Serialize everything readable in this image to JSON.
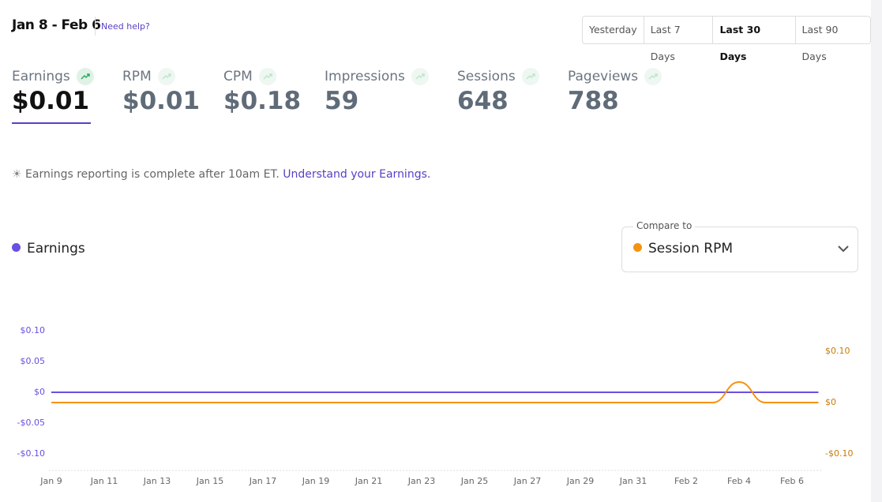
{
  "header": {
    "date_range": "Jan 8 - Feb 6",
    "help_link": "Need help?"
  },
  "range_buttons": [
    "Yesterday",
    "Last 7 Days",
    "Last 30 Days",
    "Last 90 Days"
  ],
  "active_range": 2,
  "metrics": [
    {
      "label": "Earnings",
      "value": "$0.01"
    },
    {
      "label": "RPM",
      "value": "$0.01"
    },
    {
      "label": "CPM",
      "value": "$0.18"
    },
    {
      "label": "Impressions",
      "value": "59"
    },
    {
      "label": "Sessions",
      "value": "648"
    },
    {
      "label": "Pageviews",
      "value": "788"
    }
  ],
  "notice": {
    "text": "Earnings reporting is complete after 10am ET.",
    "link": "Understand your Earnings."
  },
  "compare": {
    "label": "Compare to"
  },
  "chart_data": {
    "type": "line",
    "categories": [
      "Jan 9",
      null,
      "Jan 11",
      null,
      "Jan 13",
      null,
      "Jan 15",
      null,
      "Jan 17",
      null,
      "Jan 19",
      null,
      "Jan 21",
      null,
      "Jan 23",
      null,
      "Jan 25",
      null,
      "Jan 27",
      null,
      "Jan 29",
      null,
      "Jan 31",
      null,
      "Feb 2",
      null,
      "Feb 4",
      null,
      "Feb 6",
      null
    ],
    "series": [
      {
        "name": "Earnings",
        "color": "#6b4fe0",
        "values": [
          0,
          0,
          0,
          0,
          0,
          0,
          0,
          0,
          0,
          0,
          0,
          0,
          0,
          0,
          0,
          0,
          0,
          0,
          0,
          0,
          0,
          0,
          0,
          0,
          0,
          0,
          0,
          0,
          0,
          0
        ]
      },
      {
        "name": "Session RPM",
        "color": "#f5930f",
        "axis": "y2",
        "values": [
          0,
          0,
          0,
          0,
          0,
          0,
          0,
          0,
          0,
          0,
          0,
          0,
          0,
          0,
          0,
          0,
          0,
          0,
          0,
          0,
          0,
          0,
          0,
          0,
          0,
          0,
          0.04,
          0,
          0,
          0
        ]
      }
    ],
    "ylim": [
      -0.1,
      0.1
    ],
    "yticks": [
      {
        "value": 0.1,
        "label": "$0.10"
      },
      {
        "value": 0.05,
        "label": "$0.05"
      },
      {
        "value": 0,
        "label": "$0"
      },
      {
        "value": -0.05,
        "label": "-$0.05"
      },
      {
        "value": -0.1,
        "label": "-$0.10"
      }
    ],
    "y2lim": [
      -0.1,
      0.1
    ],
    "y2ticks": [
      {
        "value": 0.1,
        "label": "$0.10"
      },
      {
        "value": 0,
        "label": "$0"
      },
      {
        "value": -0.1,
        "label": "-$0.10"
      }
    ]
  }
}
